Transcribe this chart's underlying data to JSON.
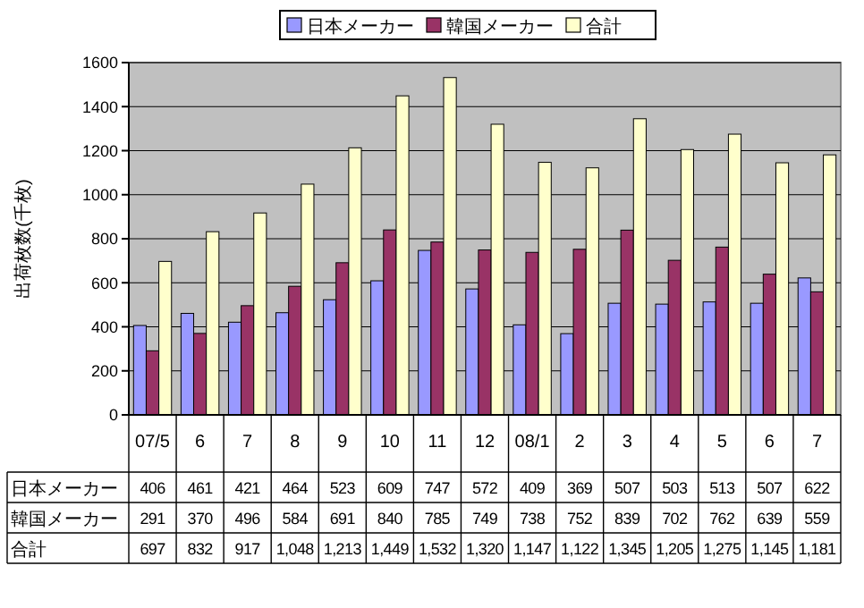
{
  "chart_data": {
    "type": "bar",
    "ylabel": "出荷枚数(千枚)",
    "categories": [
      "07/5",
      "6",
      "7",
      "8",
      "9",
      "10",
      "11",
      "12",
      "08/1",
      "2",
      "3",
      "4",
      "5",
      "6",
      "7"
    ],
    "series": [
      {
        "name": "日本メーカー",
        "color": "#9999ff",
        "values": [
          406,
          461,
          421,
          464,
          523,
          609,
          747,
          572,
          409,
          369,
          507,
          503,
          513,
          507,
          622
        ],
        "value_labels": [
          "406",
          "461",
          "421",
          "464",
          "523",
          "609",
          "747",
          "572",
          "409",
          "369",
          "507",
          "503",
          "513",
          "507",
          "622"
        ]
      },
      {
        "name": "韓国メーカー",
        "color": "#993366",
        "values": [
          291,
          370,
          496,
          584,
          691,
          840,
          785,
          749,
          738,
          752,
          839,
          702,
          762,
          639,
          559
        ],
        "value_labels": [
          "291",
          "370",
          "496",
          "584",
          "691",
          "840",
          "785",
          "749",
          "738",
          "752",
          "839",
          "702",
          "762",
          "639",
          "559"
        ]
      },
      {
        "name": "合計",
        "color": "#ffffcc",
        "values": [
          697,
          832,
          917,
          1048,
          1213,
          1449,
          1532,
          1320,
          1147,
          1122,
          1345,
          1205,
          1275,
          1145,
          1181
        ],
        "value_labels": [
          "697",
          "832",
          "917",
          "1,048",
          "1,213",
          "1,449",
          "1,532",
          "1,320",
          "1,147",
          "1,122",
          "1,345",
          "1,205",
          "1,275",
          "1,145",
          "1,181"
        ]
      }
    ],
    "ylim": [
      0,
      1600
    ],
    "yticks": [
      0,
      200,
      400,
      600,
      800,
      1000,
      1200,
      1400,
      1600
    ],
    "grid": "y",
    "legend": "top"
  }
}
